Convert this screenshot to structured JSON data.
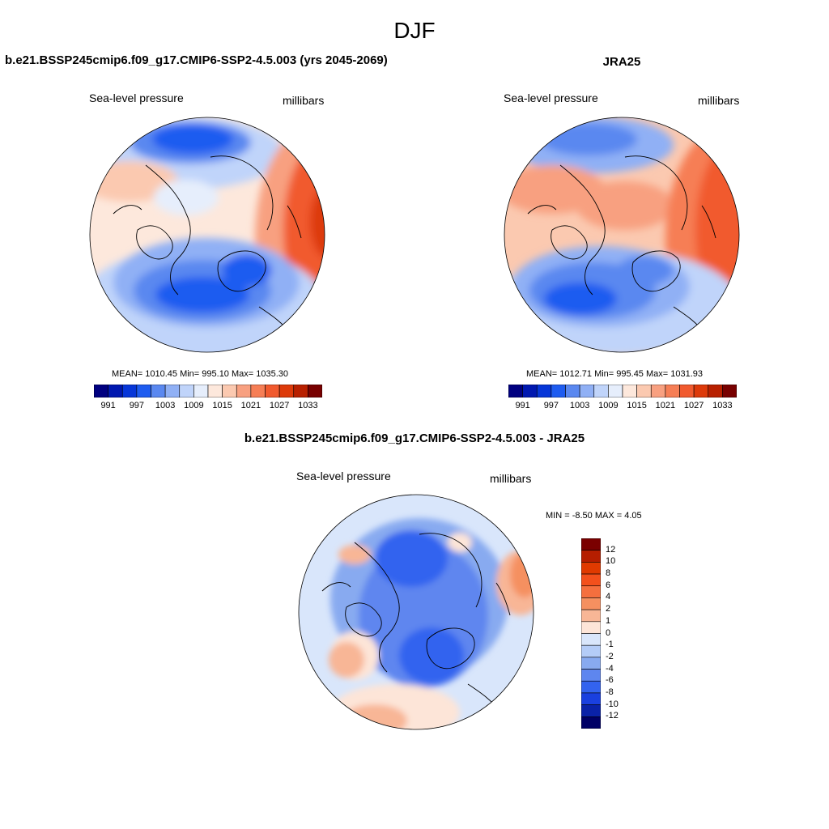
{
  "season": "DJF",
  "panels": {
    "model": {
      "title": "b.e21.BSSP245cmip6.f09_g17.CMIP6-SSP2-4.5.003 (yrs 2045-2069)",
      "variable": "Sea-level pressure",
      "units": "millibars",
      "stats": "MEAN= 1010.45   Min= 995.10   Max= 1035.30"
    },
    "obs": {
      "title": "JRA25",
      "variable": "Sea-level pressure",
      "units": "millibars",
      "stats": "MEAN= 1012.71   Min= 995.45   Max= 1031.93"
    },
    "diff": {
      "title": "b.e21.BSSP245cmip6.f09_g17.CMIP6-SSP2-4.5.003 - JRA25",
      "variable": "Sea-level pressure",
      "units": "millibars",
      "stats": "MIN =  -8.50 MAX =   4.05"
    }
  },
  "colorbar_abs": {
    "colors": [
      "#000080",
      "#0018b0",
      "#0636d8",
      "#1e5cf0",
      "#5a88f0",
      "#90b0f5",
      "#c0d4fa",
      "#e6eefc",
      "#fde8dc",
      "#fbc9b0",
      "#f8a080",
      "#f67e55",
      "#f15a2e",
      "#dd3a0a",
      "#b82000",
      "#780000"
    ],
    "labels": [
      "991",
      "997",
      "1003",
      "1009",
      "1015",
      "1021",
      "1027",
      "1033"
    ]
  },
  "colorbar_diff": {
    "colors": [
      "#7a0000",
      "#b51e00",
      "#e03a00",
      "#f3501c",
      "#f56f3e",
      "#f59060",
      "#f8b696",
      "#fde5d8",
      "#d9e6fb",
      "#b4ccf7",
      "#88aaf0",
      "#5e86ef",
      "#3363ef",
      "#1a40df",
      "#0a22a8",
      "#000066"
    ],
    "labels": [
      "12",
      "10",
      "8",
      "6",
      "4",
      "2",
      "1",
      "0",
      "-1",
      "-2",
      "-4",
      "-6",
      "-8",
      "-10",
      "-12"
    ]
  }
}
